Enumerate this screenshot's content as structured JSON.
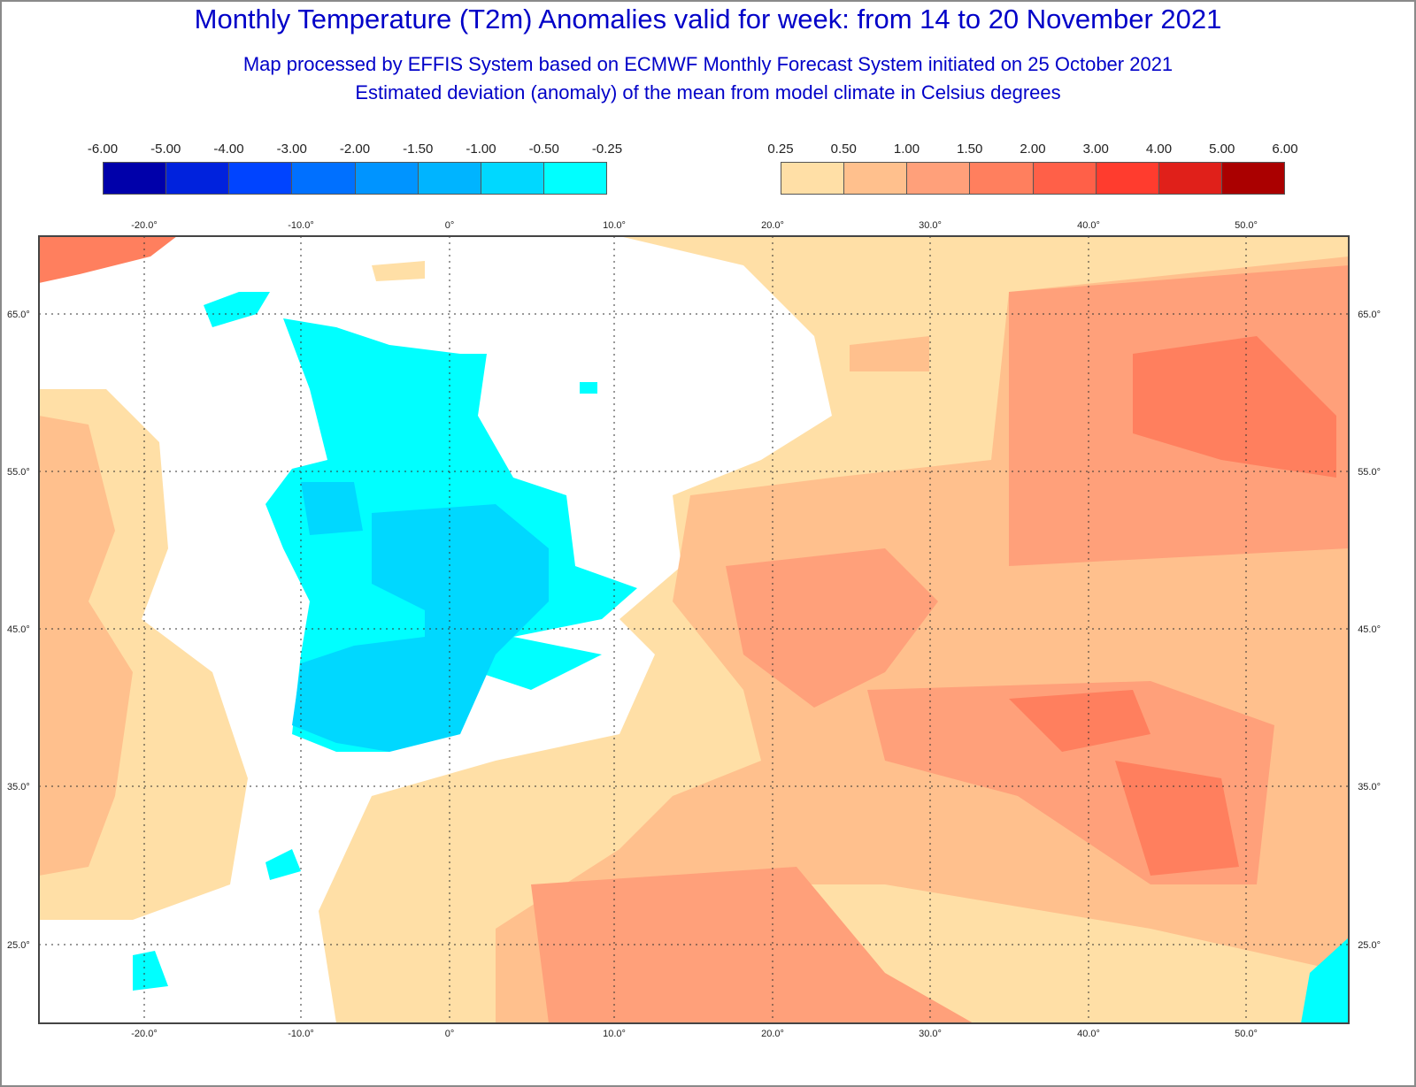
{
  "header": {
    "title": "Monthly Temperature (T2m) Anomalies valid for week: from 14 to 20 November 2021",
    "subtitle1": "Map processed by EFFIS System based on ECMWF Monthly Forecast System initiated on 25 October 2021",
    "subtitle2": "Estimated deviation (anomaly) of the mean from model climate in Celsius degrees"
  },
  "legend_negative": {
    "labels": [
      "-6.00",
      "-5.00",
      "-4.00",
      "-3.00",
      "-2.00",
      "-1.50",
      "-1.00",
      "-0.50",
      "-0.25"
    ],
    "colors": [
      "#0000aa",
      "#0022dd",
      "#0044ff",
      "#0070ff",
      "#0094ff",
      "#00b4ff",
      "#00d8ff",
      "#00ffff"
    ]
  },
  "legend_positive": {
    "labels": [
      "0.25",
      "0.50",
      "1.00",
      "1.50",
      "2.00",
      "3.00",
      "4.00",
      "5.00",
      "6.00"
    ],
    "colors": [
      "#ffdfa6",
      "#ffc08d",
      "#ffa07a",
      "#ff7f5e",
      "#ff6048",
      "#ff3c2e",
      "#e0201a",
      "#aa0000"
    ]
  },
  "map": {
    "lon_labels": [
      "-20.0°",
      "-10.0°",
      "0°",
      "10.0°",
      "20.0°",
      "30.0°",
      "40.0°",
      "50.0°"
    ],
    "lat_labels": [
      "65.0°",
      "55.0°",
      "45.0°",
      "35.0°",
      "25.0°"
    ],
    "lon_range": [
      -26,
      57
    ],
    "lat_range": [
      20,
      70
    ]
  }
}
